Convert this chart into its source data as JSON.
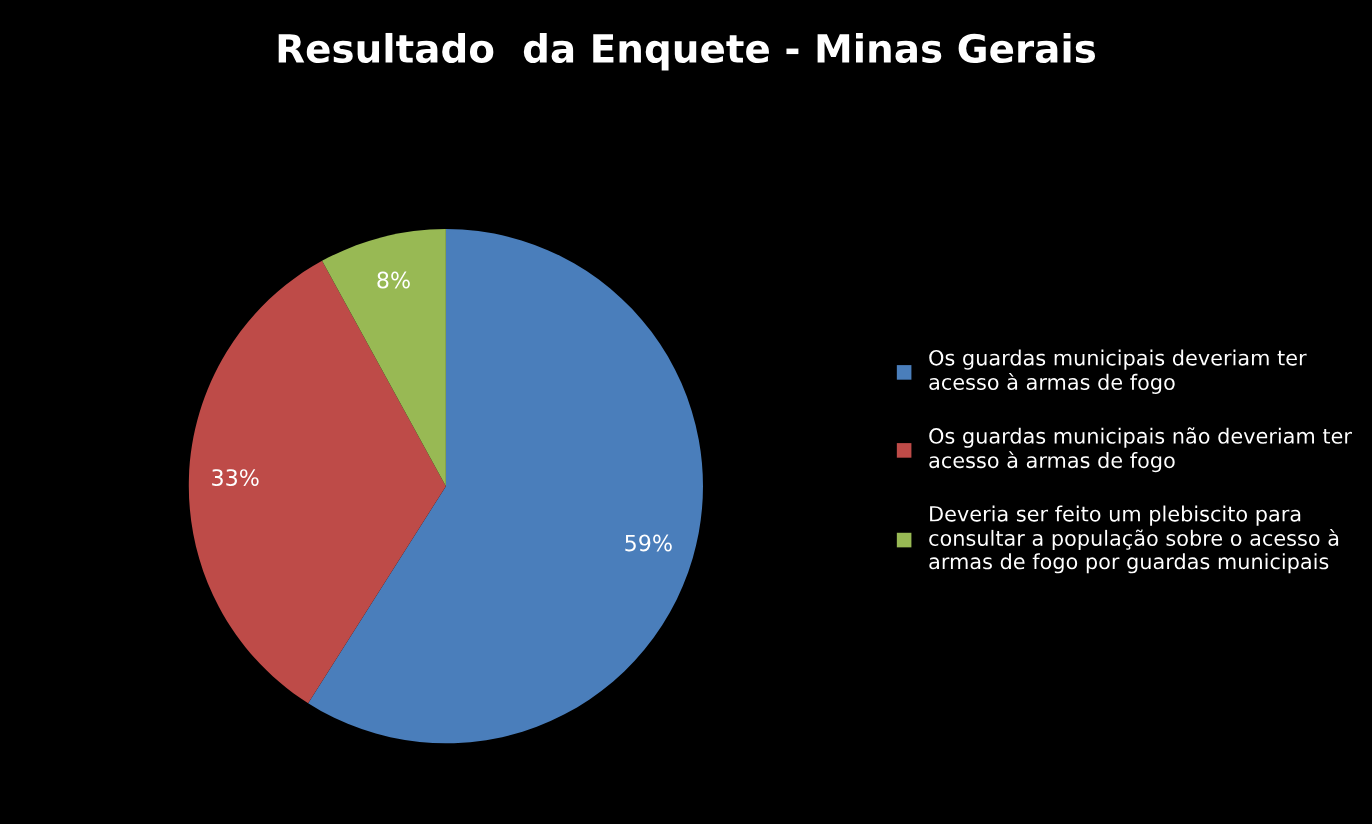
{
  "chart_data": {
    "type": "pie",
    "title": "Resultado  da Enquete - Minas Gerais",
    "categories": [
      "Os guardas municipais deveriam ter acesso à armas de fogo",
      "Os guardas municipais não deveriam ter acesso à armas de fogo",
      "Deveria ser feito um plebiscito para consultar a população sobre o acesso à armas de fogo por guardas municipais"
    ],
    "values": [
      59,
      33,
      8
    ],
    "value_labels": [
      "59%",
      "33%",
      "8%"
    ],
    "colors": [
      "#4a7ebb",
      "#be4b48",
      "#98b954"
    ],
    "legend": "right"
  }
}
